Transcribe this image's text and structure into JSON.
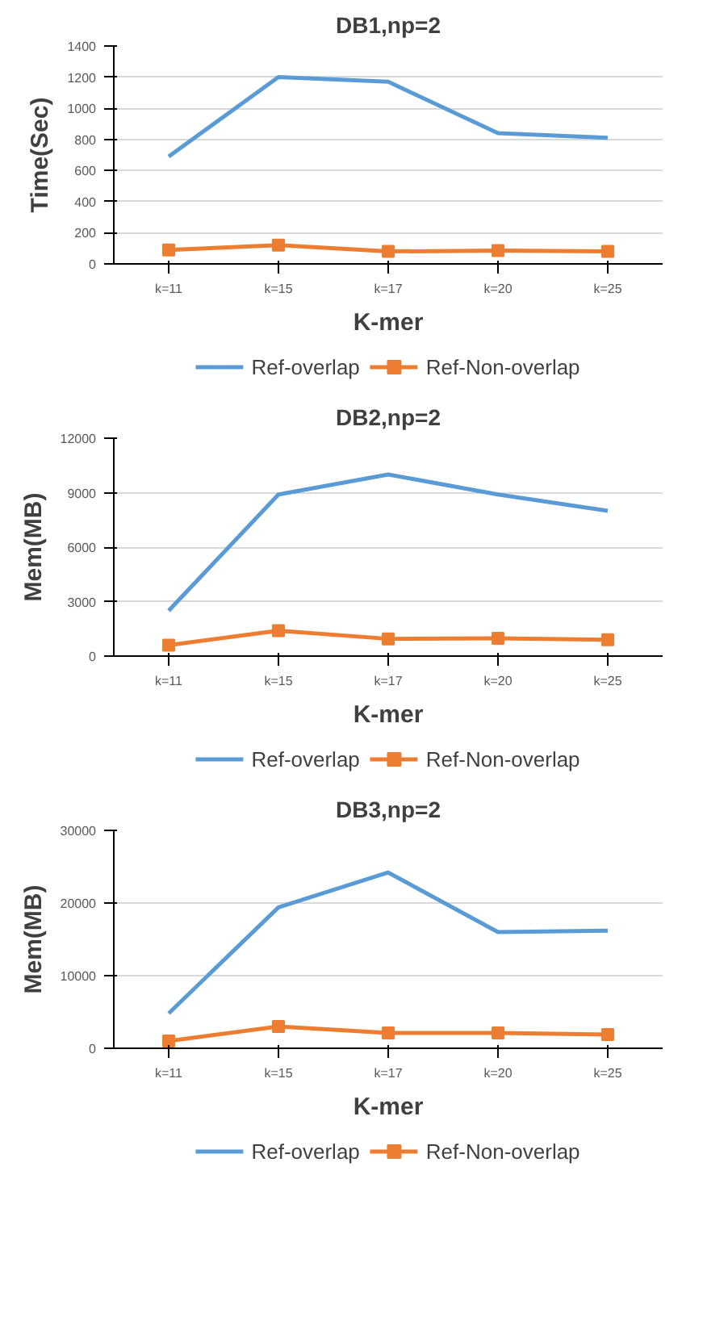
{
  "chart_data": [
    {
      "type": "line",
      "title": "DB1,np=2",
      "xlabel": "K-mer",
      "ylabel": "Time(Sec)",
      "categories": [
        "k=11",
        "k=15",
        "k=17",
        "k=20",
        "k=25"
      ],
      "ylim": [
        0,
        1400
      ],
      "yticks": [
        0,
        200,
        400,
        600,
        800,
        1000,
        1200,
        1400
      ],
      "grid": "y",
      "legend": "bottom",
      "series": [
        {
          "name": "Ref-overlap",
          "color": "#5b9bd5",
          "marker": "none",
          "values": [
            690,
            1200,
            1170,
            840,
            810
          ]
        },
        {
          "name": "Ref-Non-overlap",
          "color": "#ed7d31",
          "marker": "square",
          "values": [
            90,
            120,
            80,
            85,
            80
          ]
        }
      ]
    },
    {
      "type": "line",
      "title": "DB2,np=2",
      "xlabel": "K-mer",
      "ylabel": "Mem(MB)",
      "categories": [
        "k=11",
        "k=15",
        "k=17",
        "k=20",
        "k=25"
      ],
      "ylim": [
        0,
        12000
      ],
      "yticks": [
        0,
        3000,
        6000,
        9000,
        12000
      ],
      "grid": "y",
      "legend": "bottom",
      "series": [
        {
          "name": "Ref-overlap",
          "color": "#5b9bd5",
          "marker": "none",
          "values": [
            2500,
            8900,
            10000,
            8900,
            8000
          ]
        },
        {
          "name": "Ref-Non-overlap",
          "color": "#ed7d31",
          "marker": "square",
          "values": [
            600,
            1400,
            950,
            980,
            900
          ]
        }
      ]
    },
    {
      "type": "line",
      "title": "DB3,np=2",
      "xlabel": "K-mer",
      "ylabel": "Mem(MB)",
      "categories": [
        "k=11",
        "k=15",
        "k=17",
        "k=20",
        "k=25"
      ],
      "ylim": [
        0,
        30000
      ],
      "yticks": [
        0,
        10000,
        20000,
        30000
      ],
      "grid": "y",
      "legend": "bottom",
      "series": [
        {
          "name": "Ref-overlap",
          "color": "#5b9bd5",
          "marker": "none",
          "values": [
            4800,
            19400,
            24200,
            16000,
            16200
          ]
        },
        {
          "name": "Ref-Non-overlap",
          "color": "#ed7d31",
          "marker": "square",
          "values": [
            1000,
            3000,
            2100,
            2100,
            1900
          ]
        }
      ]
    }
  ]
}
